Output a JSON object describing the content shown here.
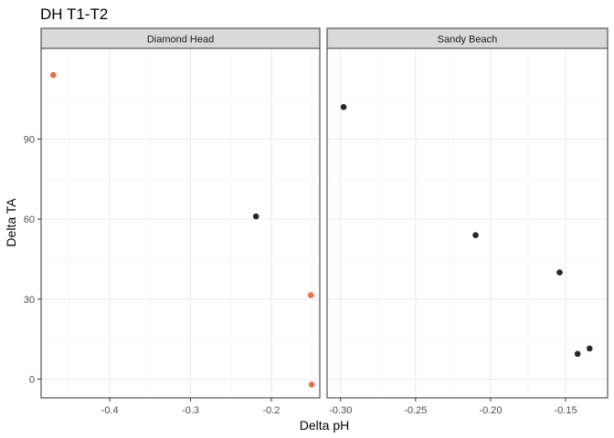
{
  "chart_data": {
    "type": "scatter",
    "title": "DH T1-T2",
    "xlabel": "Delta pH",
    "ylabel": "Delta TA",
    "grid": true,
    "legend": "none",
    "y_ticks": [
      0,
      30,
      60,
      90
    ],
    "ylim": [
      -7,
      124
    ],
    "colors": {
      "point_dark": "#262626",
      "point_orange": "#E8704A",
      "strip_fill": "#D9D9D9",
      "grid_major": "#EBEBEB",
      "grid_minor": "#F3F3F3",
      "panel_border": "#333333"
    },
    "panels": [
      {
        "label": "Diamond Head",
        "xlim": [
          -0.485,
          -0.14
        ],
        "x_ticks": [
          -0.4,
          -0.3,
          -0.2
        ],
        "x_tick_labels": [
          "-0.4",
          "-0.3",
          "-0.2"
        ],
        "points": [
          {
            "x": -0.47,
            "y": 114,
            "color": "orange"
          },
          {
            "x": -0.219,
            "y": 61,
            "color": "dark"
          },
          {
            "x": -0.151,
            "y": 31.5,
            "color": "orange"
          },
          {
            "x": -0.15,
            "y": -2,
            "color": "orange"
          }
        ]
      },
      {
        "label": "Sandy Beach",
        "xlim": [
          -0.309,
          -0.122
        ],
        "x_ticks": [
          -0.3,
          -0.25,
          -0.2,
          -0.15
        ],
        "x_tick_labels": [
          "-0.30",
          "-0.25",
          "-0.20",
          "-0.15"
        ],
        "points": [
          {
            "x": -0.298,
            "y": 102,
            "color": "dark"
          },
          {
            "x": -0.21,
            "y": 54,
            "color": "dark"
          },
          {
            "x": -0.154,
            "y": 40,
            "color": "dark"
          },
          {
            "x": -0.142,
            "y": 9.5,
            "color": "dark"
          },
          {
            "x": -0.134,
            "y": 11.5,
            "color": "dark"
          }
        ]
      }
    ]
  }
}
